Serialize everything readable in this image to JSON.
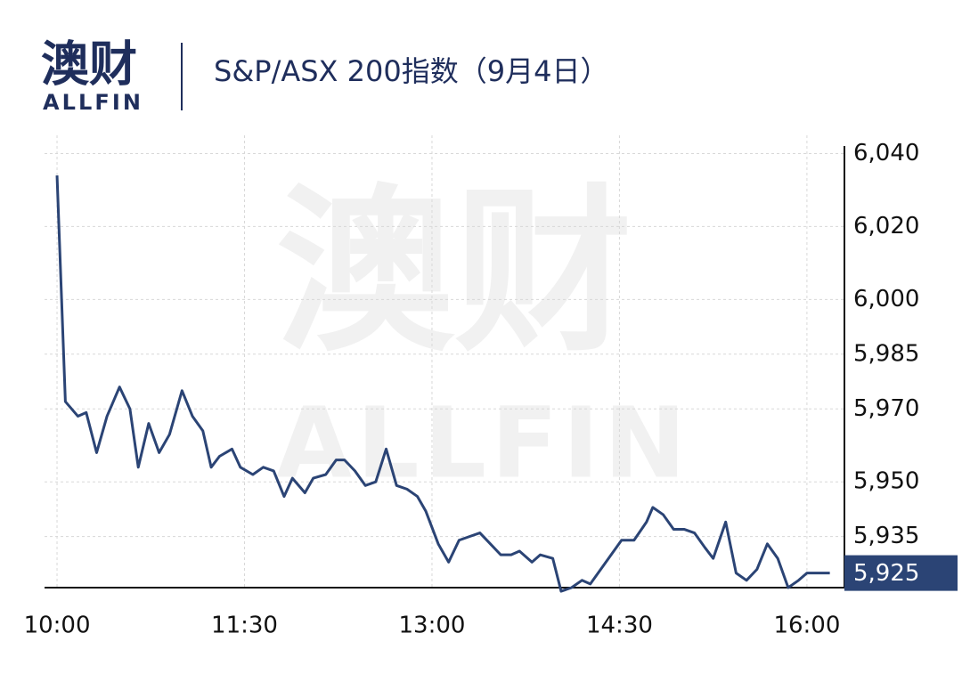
{
  "logo": {
    "name": "澳财",
    "sub": "ALLFIN"
  },
  "watermark": {
    "name": "澳财",
    "sub": "ALLFIN"
  },
  "chart_data": {
    "type": "line",
    "title": "S&P/ASX 200指数（9月4日）",
    "x": [
      0,
      4,
      10,
      14,
      19,
      24,
      30,
      35,
      39,
      44,
      49,
      54,
      60,
      65,
      70,
      74,
      78,
      84,
      88,
      94,
      99,
      104,
      109,
      113,
      119,
      123,
      129,
      134,
      138,
      143,
      148,
      153,
      158,
      163,
      168,
      173,
      177,
      183,
      188,
      193,
      198,
      203,
      208,
      213,
      218,
      222,
      228,
      232,
      238,
      242,
      247,
      252,
      256,
      261,
      266,
      271,
      277,
      283,
      286,
      291,
      296,
      301,
      306,
      311,
      315,
      321,
      326,
      331,
      336,
      341,
      346,
      351,
      356,
      360,
      371
    ],
    "series": [
      {
        "name": "S&P/ASX 200",
        "color": "#2b4475",
        "values": [
          6034,
          5972,
          5968,
          5969,
          5958,
          5968,
          5976,
          5970,
          5954,
          5966,
          5958,
          5963,
          5975,
          5968,
          5964,
          5954,
          5957,
          5959,
          5954,
          5952,
          5954,
          5953,
          5946,
          5951,
          5947,
          5951,
          5952,
          5956,
          5956,
          5953,
          5949,
          5950,
          5959,
          5949,
          5948,
          5946,
          5942,
          5933,
          5928,
          5934,
          5935,
          5936,
          5933,
          5930,
          5930,
          5931,
          5928,
          5930,
          5929,
          5920,
          5921,
          5923,
          5922,
          5926,
          5930,
          5934,
          5934,
          5939,
          5943,
          5941,
          5937,
          5937,
          5936,
          5932,
          5929,
          5939,
          5925,
          5923,
          5926,
          5933,
          5929,
          5921,
          5923,
          5925,
          5925
        ]
      }
    ],
    "current": {
      "value": 5925,
      "label": "5,925"
    },
    "xlim": [
      -6,
      378
    ],
    "xticks": [
      {
        "value": 0,
        "label": "10:00"
      },
      {
        "value": 90,
        "label": "11:30"
      },
      {
        "value": 180,
        "label": "13:00"
      },
      {
        "value": 270,
        "label": "14:30"
      },
      {
        "value": 360,
        "label": "16:00"
      }
    ],
    "ylim": [
      5921,
      6045
    ],
    "yticks": [
      {
        "value": 5935,
        "label": "5,935"
      },
      {
        "value": 5950,
        "label": "5,950"
      },
      {
        "value": 5970,
        "label": "5,970"
      },
      {
        "value": 5985,
        "label": "5,985"
      },
      {
        "value": 6000,
        "label": "6,000"
      },
      {
        "value": 6020,
        "label": "6,020"
      },
      {
        "value": 6040,
        "label": "6,040"
      }
    ],
    "grid": true
  }
}
